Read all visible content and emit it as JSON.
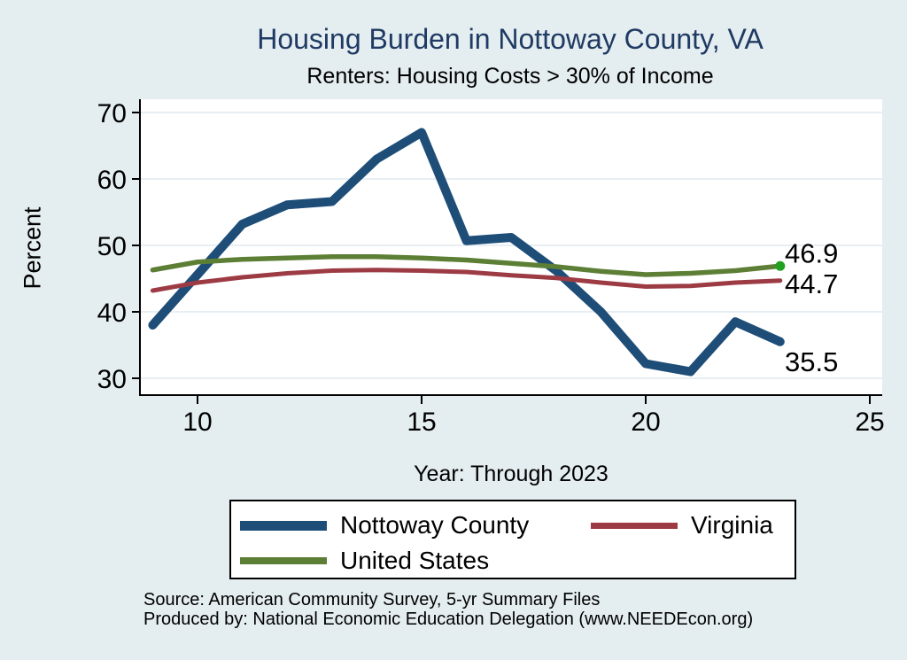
{
  "title": "Housing Burden in Nottoway County, VA",
  "subtitle": "Renters: Housing Costs > 30% of Income",
  "footer": {
    "source": "Source: American Community Survey, 5-yr Summary Files",
    "produced_by": "Produced by: National Economic Education Delegation (www.NEEDEcon.org)"
  },
  "colors": {
    "background": "#e4edf0",
    "plot_background": "#ffffff",
    "gridline": "#e7eff4",
    "axis": "#000000",
    "title": "#1f3a63",
    "text": "#000000"
  },
  "chart_data": {
    "type": "line",
    "title": "Housing Burden in Nottoway County, VA",
    "subtitle": "Renters: Housing Costs > 30% of Income",
    "xlabel": "Year: Through 2023",
    "ylabel": "Percent",
    "x": [
      9,
      10,
      11,
      12,
      13,
      14,
      15,
      16,
      17,
      18,
      19,
      20,
      21,
      22,
      23
    ],
    "xticks": [
      10,
      15,
      20,
      25
    ],
    "yticks": [
      30,
      40,
      50,
      60,
      70
    ],
    "xlim": [
      8.7,
      25.3
    ],
    "ylim": [
      27.5,
      72
    ],
    "grid": "horizontal-only",
    "legend_position": "bottom",
    "series": [
      {
        "name": "Nottoway County",
        "color": "#1e4e78",
        "width": 10,
        "end_label": "35.5",
        "label_dy": 33,
        "end_marker": false,
        "values": [
          38.0,
          45.6,
          53.2,
          56.1,
          56.6,
          63.0,
          67.0,
          50.7,
          51.2,
          46.2,
          40.0,
          32.2,
          31.0,
          38.5,
          35.5
        ]
      },
      {
        "name": "Virginia",
        "color": "#9d3b44",
        "width": 5,
        "end_label": "44.7",
        "label_dy": 14,
        "end_marker": false,
        "values": [
          43.2,
          44.4,
          45.2,
          45.8,
          46.2,
          46.3,
          46.2,
          46.0,
          45.5,
          45.1,
          44.4,
          43.8,
          43.9,
          44.4,
          44.7
        ]
      },
      {
        "name": "United States",
        "color": "#5c7f35",
        "width": 5.5,
        "end_label": "46.9",
        "label_dy": -4,
        "end_marker": true,
        "marker_color": "#21a121",
        "values": [
          46.3,
          47.5,
          47.9,
          48.1,
          48.3,
          48.3,
          48.1,
          47.8,
          47.3,
          46.8,
          46.1,
          45.6,
          45.8,
          46.2,
          46.9
        ]
      }
    ]
  }
}
